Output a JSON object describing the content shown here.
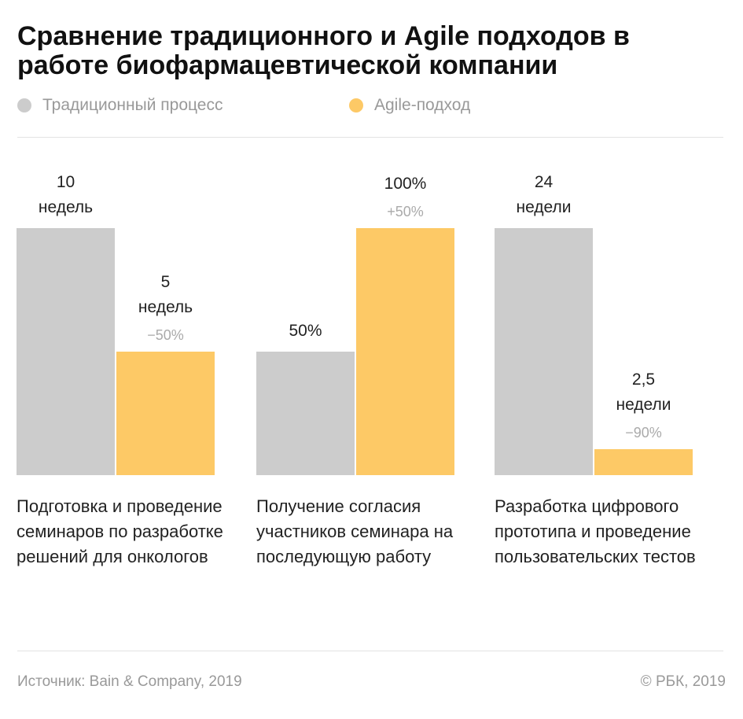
{
  "title": "Сравнение традиционного и Agile подходов в работе биофармацевтической компании",
  "legend": [
    {
      "name": "Традиционный процесс",
      "color": "#cccccc"
    },
    {
      "name": "Agile-подход",
      "color": "#fdc966"
    }
  ],
  "chart_data": [
    {
      "type": "bar",
      "category": "Подготовка и проведение семинаров по разработке решений для онкологов",
      "ylim": [
        0,
        10
      ],
      "values": [
        10,
        5
      ],
      "value_labels": [
        "10 недель",
        "5 недель"
      ],
      "change": "−50%"
    },
    {
      "type": "bar",
      "category": "Получение согласия участников семинара на последующую работу",
      "ylim": [
        0,
        100
      ],
      "values": [
        50,
        100
      ],
      "value_labels": [
        "50%",
        "100%"
      ],
      "change": "+50%"
    },
    {
      "type": "bar",
      "category": "Разработка цифрового прототипа и проведение пользовательских тестов",
      "ylim": [
        0,
        24
      ],
      "values": [
        24,
        2.5
      ],
      "value_labels": [
        "24 недели",
        "2,5 недели"
      ],
      "change": "−90%"
    }
  ],
  "source": "Источник: Bain & Company, 2019",
  "copyright": "© РБК, 2019"
}
